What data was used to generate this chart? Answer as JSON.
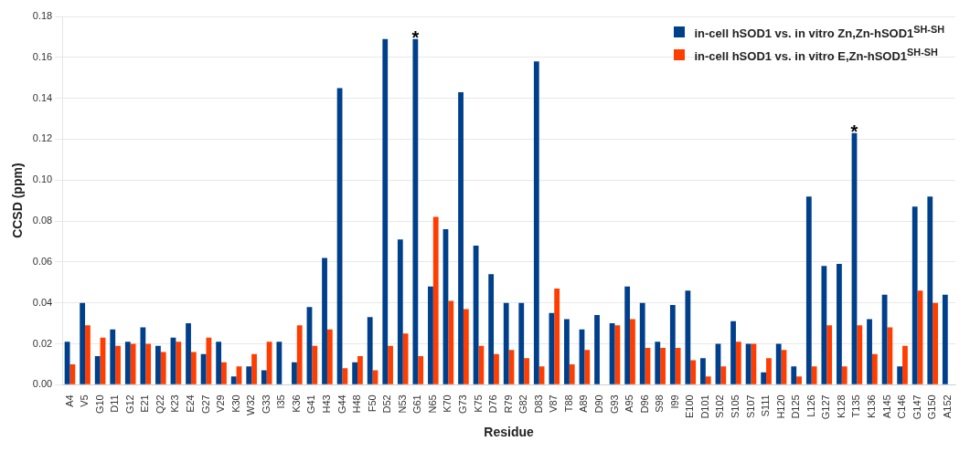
{
  "chart_data": {
    "type": "bar",
    "xlabel": "Residue",
    "ylabel": "CCSD (ppm)",
    "categories": [
      "A4",
      "V5",
      "G10",
      "D11",
      "G12",
      "E21",
      "Q22",
      "K23",
      "E24",
      "G27",
      "V29",
      "K30",
      "W32",
      "G33",
      "I35",
      "K36",
      "G41",
      "H43",
      "G44",
      "H48",
      "F50",
      "D52",
      "N53",
      "G61",
      "N65",
      "K70",
      "G73",
      "K75",
      "D76",
      "R79",
      "G82",
      "D83",
      "V87",
      "T88",
      "A89",
      "D90",
      "G93",
      "A95",
      "D96",
      "S98",
      "I99",
      "E100",
      "D101",
      "S102",
      "S105",
      "S107",
      "S111",
      "H120",
      "D125",
      "L126",
      "G127",
      "K128",
      "T135",
      "K136",
      "A145",
      "C146",
      "G147",
      "G150",
      "A152"
    ],
    "series": [
      {
        "name": "in-cell hSOD1 vs. in vitro Zn,Zn-hSOD1$^{SH-SH}$",
        "color": "#003f8a",
        "values": [
          0.021,
          0.04,
          0.014,
          0.027,
          0.021,
          0.028,
          0.019,
          0.023,
          0.03,
          0.015,
          0.021,
          0.004,
          0.009,
          0.007,
          0.021,
          0.011,
          0.038,
          0.062,
          0.145,
          0.011,
          0.033,
          0.169,
          0.071,
          0.169,
          0.048,
          0.076,
          0.143,
          0.068,
          0.054,
          0.04,
          0.04,
          0.158,
          0.035,
          0.032,
          0.027,
          0.034,
          0.03,
          0.048,
          0.04,
          0.021,
          0.039,
          0.046,
          0.013,
          0.02,
          0.031,
          0.02,
          0.006,
          0.02,
          0.009,
          0.092,
          0.058,
          0.059,
          0.123,
          0.032,
          0.044,
          0.009,
          0.087,
          0.092,
          0.044
        ]
      },
      {
        "name": "in-cell hSOD1 vs. in vitro E,Zn-hSOD1$^{SH-SH}$",
        "color": "#ff3d00",
        "values": [
          0.01,
          0.029,
          0.023,
          0.019,
          0.02,
          0.02,
          0.016,
          0.021,
          0.016,
          0.023,
          0.011,
          0.009,
          0.015,
          0.021,
          null,
          0.029,
          0.019,
          0.027,
          0.008,
          0.014,
          0.007,
          0.019,
          0.025,
          0.014,
          0.082,
          0.041,
          0.037,
          0.019,
          0.015,
          0.017,
          0.013,
          0.009,
          0.047,
          0.01,
          0.017,
          null,
          0.029,
          0.032,
          0.018,
          0.018,
          0.018,
          0.012,
          0.004,
          0.009,
          0.021,
          0.02,
          0.013,
          0.017,
          0.004,
          0.009,
          0.029,
          0.009,
          0.029,
          0.015,
          0.028,
          0.019,
          0.046,
          0.04,
          null
        ]
      }
    ],
    "ylim": [
      0,
      0.18
    ],
    "yticks": [
      {
        "value": 0,
        "label": "0.00"
      },
      0.02,
      0.04,
      0.06,
      0.08,
      {
        "value": 0.1,
        "label": "0.10"
      },
      0.12,
      0.14,
      0.16,
      0.18
    ],
    "grid": "y",
    "legend": "top right",
    "annotations": [
      {
        "text": "*",
        "x": "G61",
        "y": 0.169
      },
      {
        "text": "*",
        "x": "T135",
        "y": 0.123
      }
    ]
  }
}
